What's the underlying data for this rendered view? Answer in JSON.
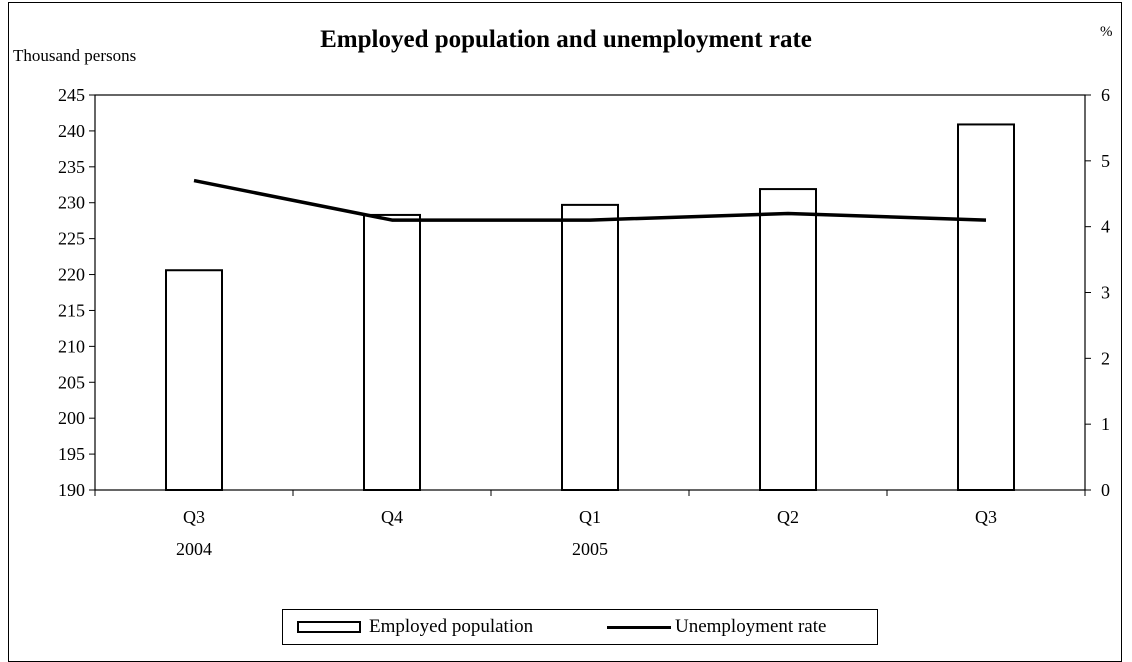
{
  "chart_data": {
    "type": "bar",
    "title": "Employed population and unemployment rate",
    "categories": [
      "Q3",
      "Q4",
      "Q1",
      "Q2",
      "Q3"
    ],
    "category_sublabels": [
      "2004",
      "",
      "2005",
      "",
      ""
    ],
    "left_axis": {
      "label": "Thousand persons",
      "ylim": [
        190,
        245
      ],
      "ticks": [
        190,
        195,
        200,
        205,
        210,
        215,
        220,
        225,
        230,
        235,
        240,
        245
      ]
    },
    "right_axis": {
      "label": "%",
      "ylim": [
        0,
        6
      ],
      "ticks": [
        0,
        1,
        2,
        3,
        4,
        5,
        6
      ]
    },
    "series": [
      {
        "name": "Employed population",
        "type": "bar",
        "axis": "left",
        "values": [
          220.6,
          228.3,
          229.7,
          231.9,
          240.9
        ]
      },
      {
        "name": "Unemployment rate",
        "type": "line",
        "axis": "right",
        "values": [
          4.7,
          4.1,
          4.1,
          4.2,
          4.1
        ]
      }
    ],
    "grid": false,
    "legend_position": "bottom"
  }
}
